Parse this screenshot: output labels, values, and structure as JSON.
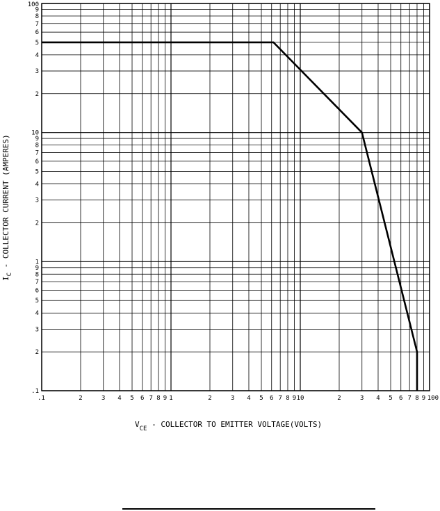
{
  "chart_data": {
    "type": "line",
    "title": "",
    "xscale": "log",
    "yscale": "log",
    "xlim": [
      0.1,
      100
    ],
    "ylim": [
      0.1,
      100
    ],
    "xlabel": {
      "main": "V",
      "sub": "CE",
      "rest": " - COLLECTOR TO EMITTER VOLTAGE(VOLTS)"
    },
    "ylabel": {
      "main": "I",
      "sub": "C",
      "rest": " - COLLECTOR CURRENT (AMPERES)"
    },
    "x_tick_labels": [
      {
        "v": 0.1,
        "t": ".1"
      },
      {
        "v": 0.2,
        "t": "2"
      },
      {
        "v": 0.3,
        "t": "3"
      },
      {
        "v": 0.4,
        "t": "4"
      },
      {
        "v": 0.5,
        "t": "5"
      },
      {
        "v": 0.6,
        "t": "6"
      },
      {
        "v": 0.7,
        "t": "7"
      },
      {
        "v": 0.8,
        "t": "8"
      },
      {
        "v": 0.9,
        "t": "9"
      },
      {
        "v": 1,
        "t": "1"
      },
      {
        "v": 2,
        "t": "2"
      },
      {
        "v": 3,
        "t": "3"
      },
      {
        "v": 4,
        "t": "4"
      },
      {
        "v": 5,
        "t": "5"
      },
      {
        "v": 6,
        "t": "6"
      },
      {
        "v": 7,
        "t": "7"
      },
      {
        "v": 8,
        "t": "8"
      },
      {
        "v": 9,
        "t": "9"
      },
      {
        "v": 10,
        "t": "10"
      },
      {
        "v": 20,
        "t": "2"
      },
      {
        "v": 30,
        "t": "3"
      },
      {
        "v": 40,
        "t": "4"
      },
      {
        "v": 50,
        "t": "5"
      },
      {
        "v": 60,
        "t": "6"
      },
      {
        "v": 70,
        "t": "7"
      },
      {
        "v": 80,
        "t": "8"
      },
      {
        "v": 90,
        "t": "9"
      },
      {
        "v": 100,
        "t": "100"
      }
    ],
    "y_tick_labels": [
      {
        "v": 0.1,
        "t": ".1"
      },
      {
        "v": 0.2,
        "t": "2"
      },
      {
        "v": 0.3,
        "t": "3"
      },
      {
        "v": 0.4,
        "t": "4"
      },
      {
        "v": 0.5,
        "t": "5"
      },
      {
        "v": 0.6,
        "t": "6"
      },
      {
        "v": 0.7,
        "t": "7"
      },
      {
        "v": 0.8,
        "t": "8"
      },
      {
        "v": 0.9,
        "t": "9"
      },
      {
        "v": 1,
        "t": "1"
      },
      {
        "v": 2,
        "t": "2"
      },
      {
        "v": 3,
        "t": "3"
      },
      {
        "v": 4,
        "t": "4"
      },
      {
        "v": 5,
        "t": "5"
      },
      {
        "v": 6,
        "t": "6"
      },
      {
        "v": 7,
        "t": "7"
      },
      {
        "v": 8,
        "t": "8"
      },
      {
        "v": 9,
        "t": "9"
      },
      {
        "v": 10,
        "t": "10"
      },
      {
        "v": 20,
        "t": "2"
      },
      {
        "v": 30,
        "t": "3"
      },
      {
        "v": 40,
        "t": "4"
      },
      {
        "v": 50,
        "t": "5"
      },
      {
        "v": 60,
        "t": "6"
      },
      {
        "v": 70,
        "t": "7"
      },
      {
        "v": 80,
        "t": "8"
      },
      {
        "v": 90,
        "t": "9"
      },
      {
        "v": 100,
        "t": "100"
      }
    ],
    "grid": true,
    "series": [
      {
        "points": [
          [
            0.1,
            50
          ],
          [
            6.2,
            50
          ],
          [
            30,
            10
          ],
          [
            80,
            0.2
          ],
          [
            80,
            0.1
          ]
        ]
      }
    ],
    "line_color": "#000000"
  }
}
